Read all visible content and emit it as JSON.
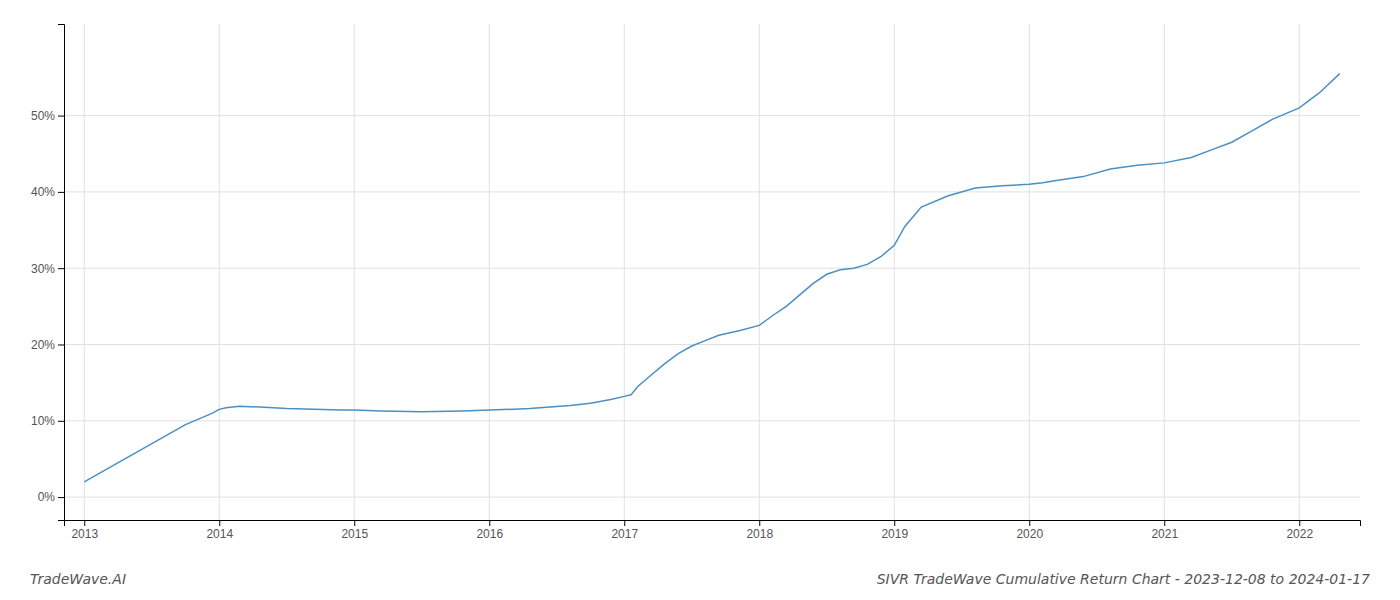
{
  "chart_data": {
    "type": "line",
    "title": "SIVR TradeWave Cumulative Return Chart - 2023-12-08 to 2024-01-17",
    "annotations": [
      "TradeWave.AI"
    ],
    "color": "#4a90c4",
    "grid": true,
    "x": [
      2013.0,
      2013.15,
      2013.35,
      2013.55,
      2013.75,
      2013.95,
      2014.0,
      2014.05,
      2014.15,
      2014.3,
      2014.5,
      2014.7,
      2014.9,
      2015.0,
      2015.2,
      2015.5,
      2015.8,
      2016.0,
      2016.3,
      2016.6,
      2016.75,
      2016.9,
      2017.0,
      2017.05,
      2017.1,
      2017.2,
      2017.3,
      2017.4,
      2017.5,
      2017.6,
      2017.7,
      2017.85,
      2018.0,
      2018.1,
      2018.2,
      2018.3,
      2018.4,
      2018.5,
      2018.6,
      2018.7,
      2018.8,
      2018.9,
      2019.0,
      2019.08,
      2019.2,
      2019.4,
      2019.6,
      2019.8,
      2020.0,
      2020.1,
      2020.2,
      2020.4,
      2020.6,
      2020.8,
      2021.0,
      2021.2,
      2021.35,
      2021.5,
      2021.65,
      2021.8,
      2022.0,
      2022.15,
      2022.3
    ],
    "values": [
      2.0,
      3.5,
      5.5,
      7.5,
      9.5,
      11.0,
      11.5,
      11.7,
      11.9,
      11.8,
      11.6,
      11.5,
      11.4,
      11.4,
      11.3,
      11.2,
      11.3,
      11.4,
      11.6,
      12.0,
      12.3,
      12.8,
      13.2,
      13.4,
      14.5,
      16.0,
      17.5,
      18.8,
      19.8,
      20.5,
      21.2,
      21.8,
      22.5,
      23.8,
      25.0,
      26.5,
      28.0,
      29.2,
      29.8,
      30.0,
      30.5,
      31.5,
      33.0,
      35.5,
      38.0,
      39.5,
      40.5,
      40.8,
      41.0,
      41.2,
      41.5,
      42.0,
      43.0,
      43.5,
      43.8,
      44.5,
      45.5,
      46.5,
      48.0,
      49.5,
      51.0,
      53.0,
      55.5
    ],
    "xlim": [
      2012.85,
      2022.45
    ],
    "ylim": [
      -3,
      62
    ],
    "xticks": [
      2013,
      2014,
      2015,
      2016,
      2017,
      2018,
      2019,
      2020,
      2021,
      2022
    ],
    "yticks": [
      {
        "value": 0,
        "label": "0%"
      },
      {
        "value": 10,
        "label": "10%"
      },
      {
        "value": 20,
        "label": "20%"
      },
      {
        "value": 30,
        "label": "30%"
      },
      {
        "value": 40,
        "label": "40%"
      },
      {
        "value": 50,
        "label": "50%"
      }
    ]
  }
}
